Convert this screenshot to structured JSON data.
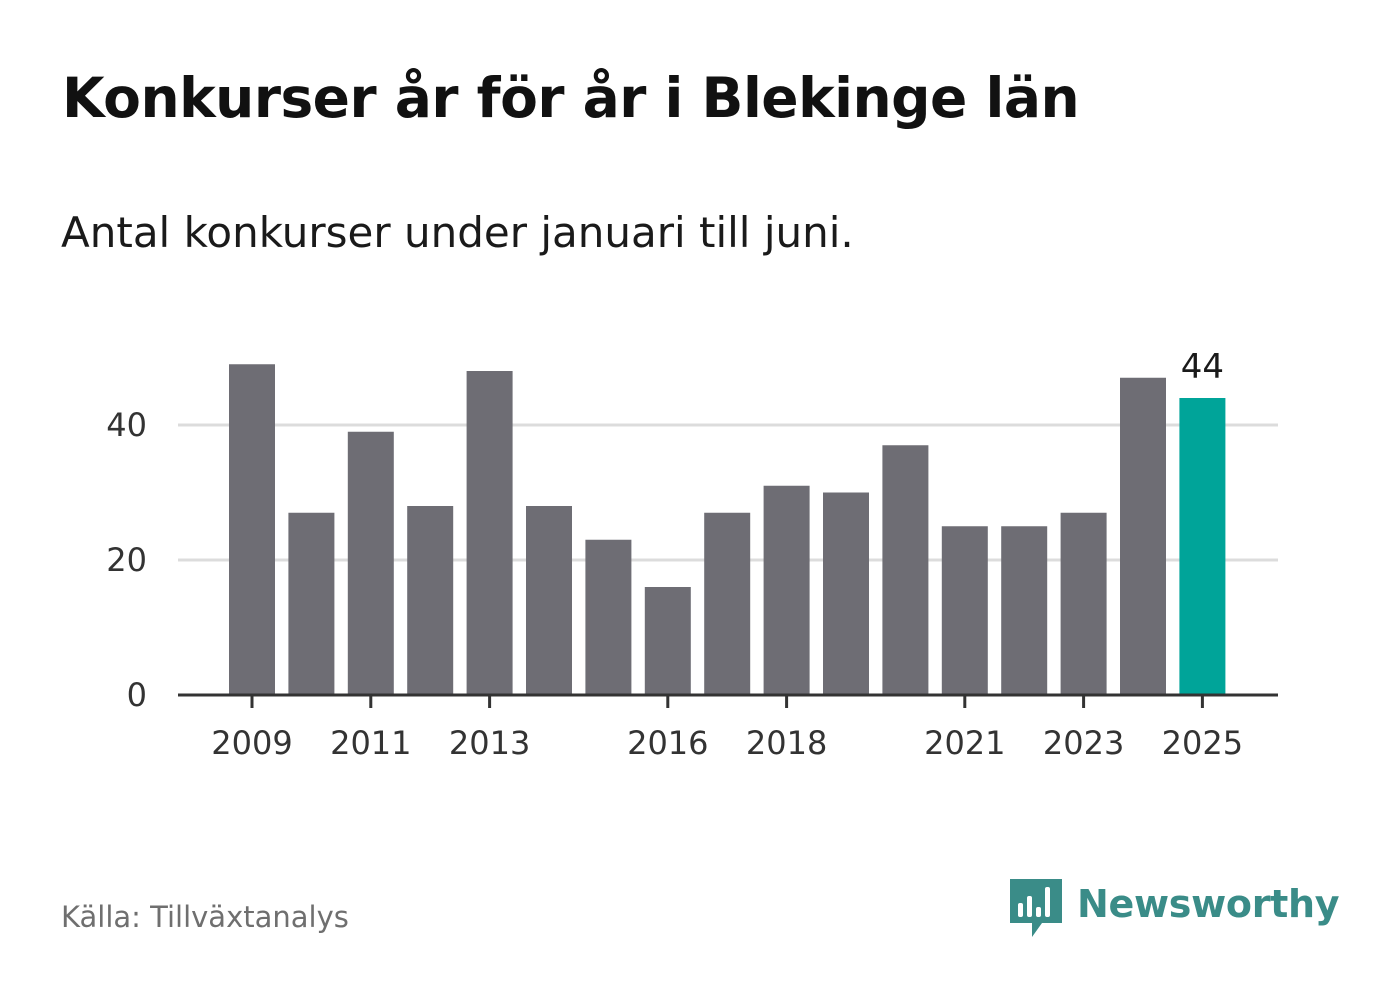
{
  "title": "Konkurser år för år i Blekinge län",
  "subtitle": "Antal konkurser under januari till juni.",
  "source": "Källa: Tillväxtanalys",
  "brand": {
    "name": "Newsworthy",
    "icon": "newsworthy-logo-icon",
    "color": "#3a8c88"
  },
  "chart_data": {
    "type": "bar",
    "categories": [
      "2009",
      "2010",
      "2011",
      "2012",
      "2013",
      "2014",
      "2015",
      "2016",
      "2017",
      "2018",
      "2019",
      "2020",
      "2021",
      "2022",
      "2023",
      "2024",
      "2025"
    ],
    "values": [
      49,
      27,
      39,
      28,
      48,
      28,
      23,
      16,
      27,
      31,
      30,
      37,
      25,
      25,
      27,
      47,
      44
    ],
    "x_tick_labels": [
      "2009",
      "2011",
      "2013",
      "2016",
      "2018",
      "2021",
      "2023",
      "2025"
    ],
    "y_ticks": [
      0,
      20,
      40
    ],
    "ylim": [
      0,
      50
    ],
    "grid": true,
    "highlight": {
      "category": "2025",
      "label": "44"
    },
    "colors": {
      "bar": "#6e6d74",
      "highlight": "#00a499",
      "grid": "#dcdcdc",
      "axis": "#333333"
    },
    "xlabel": "",
    "ylabel": ""
  }
}
